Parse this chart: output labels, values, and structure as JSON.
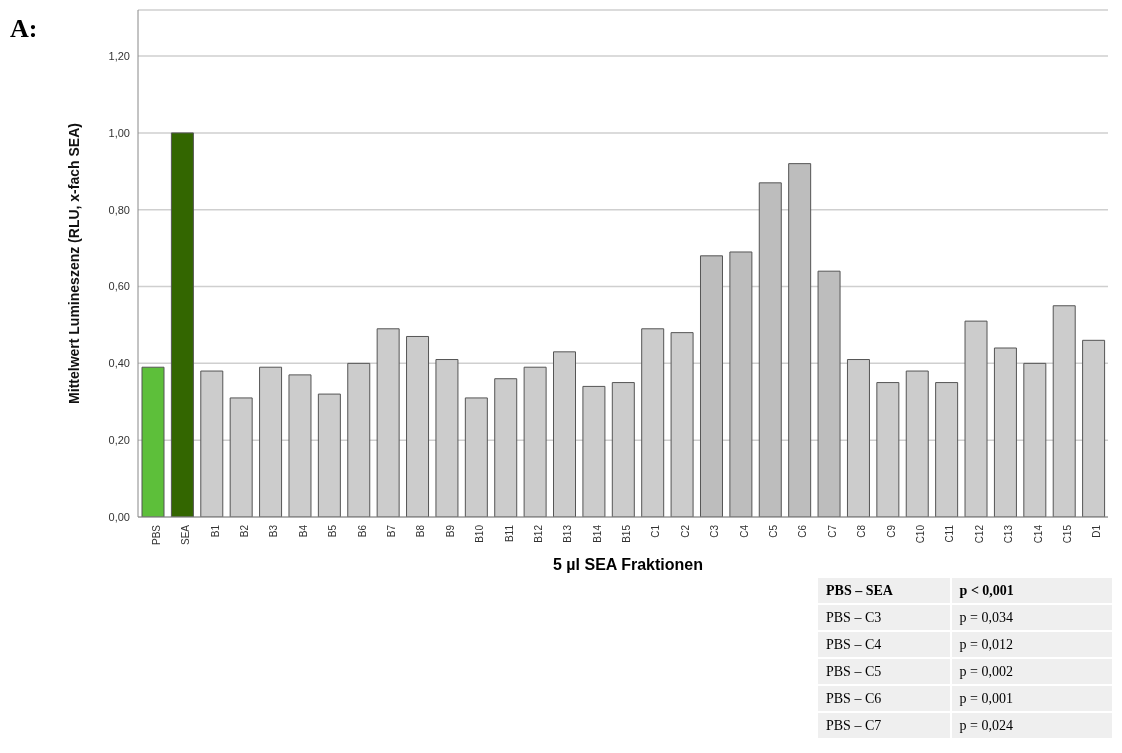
{
  "chart_data": {
    "type": "bar",
    "title": "A:",
    "xlabel": "5 µl SEA Fraktionen",
    "ylabel": "Mittelwert Lumineszenz (RLU, x-fach SEA)",
    "categories": [
      "PBS",
      "SEA",
      "B1",
      "B2",
      "B3",
      "B4",
      "B5",
      "B6",
      "B7",
      "B8",
      "B9",
      "B10",
      "B11",
      "B12",
      "B13",
      "B14",
      "B15",
      "C1",
      "C2",
      "C3",
      "C4",
      "C5",
      "C6",
      "C7",
      "C8",
      "C9",
      "C10",
      "C11",
      "C12",
      "C13",
      "C14",
      "C15",
      "D1"
    ],
    "values": [
      0.39,
      1.0,
      0.38,
      0.31,
      0.39,
      0.37,
      0.32,
      0.4,
      0.49,
      0.47,
      0.41,
      0.31,
      0.36,
      0.39,
      0.43,
      0.34,
      0.35,
      0.49,
      0.48,
      0.68,
      0.69,
      0.87,
      0.92,
      0.64,
      0.41,
      0.35,
      0.38,
      0.35,
      0.51,
      0.44,
      0.4,
      0.55,
      0.46
    ],
    "colors": [
      "#5dbf3a",
      "#336600",
      "#cccccc",
      "#cccccc",
      "#cccccc",
      "#cccccc",
      "#cccccc",
      "#cccccc",
      "#cccccc",
      "#cccccc",
      "#cccccc",
      "#cccccc",
      "#cccccc",
      "#cccccc",
      "#cccccc",
      "#cccccc",
      "#cccccc",
      "#cccccc",
      "#cccccc",
      "#bdbdbd",
      "#bdbdbd",
      "#bdbdbd",
      "#bdbdbd",
      "#bdbdbd",
      "#cccccc",
      "#cccccc",
      "#cccccc",
      "#cccccc",
      "#cccccc",
      "#cccccc",
      "#cccccc",
      "#cccccc",
      "#cccccc"
    ],
    "ylim": [
      0,
      1.32
    ],
    "yticks": [
      {
        "value": 0,
        "label": "0,00"
      },
      {
        "value": 0.2,
        "label": "0,20"
      },
      {
        "value": 0.4,
        "label": "0,40"
      },
      {
        "value": 0.6,
        "label": "0,60"
      },
      {
        "value": 0.8,
        "label": "0,80"
      },
      {
        "value": 1.0,
        "label": "1,00"
      },
      {
        "value": 1.2,
        "label": "1,20"
      }
    ],
    "grid": "y",
    "legend": false,
    "annotations": [
      "PBS – SEA",
      "p < 0,001",
      "PBS – C3",
      "p = 0,034",
      "PBS – C4",
      "p = 0,012",
      "PBS – C5",
      "p = 0,002",
      "PBS – C6",
      "p = 0,001",
      "PBS – C7",
      "p = 0,024"
    ]
  }
}
